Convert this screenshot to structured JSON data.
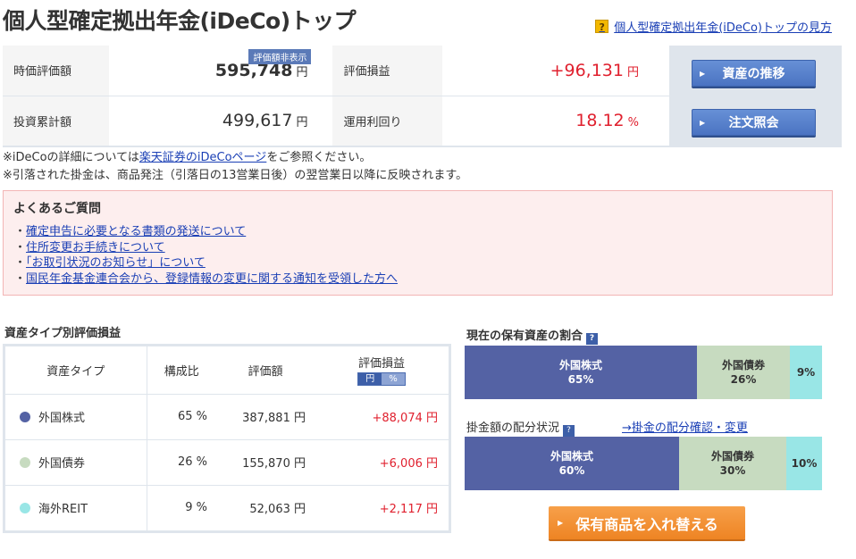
{
  "header": {
    "title": "個人型確定拠出年金(iDeCo)トップ",
    "guide_link": "個人型確定拠出年金(iDeCo)トップの見方",
    "guide_icon": "question-icon"
  },
  "summary": {
    "market_value_label": "時価評価額",
    "market_value": "595,748",
    "hide_badge": "評価額非表示",
    "profit_label": "評価損益",
    "profit": "+96,131",
    "invested_label": "投資累計額",
    "invested": "499,617",
    "yield_label": "運用利回り",
    "yield": "18.12",
    "yield_unit": "%",
    "yen": "円",
    "btn_history": "資産の推移",
    "btn_orders": "注文照会"
  },
  "notes": {
    "line1_pre": "※iDeCoの詳細については",
    "line1_link": "楽天証券のiDeCoページ",
    "line1_post": "をご参照ください。",
    "line2": "※引落された掛金は、商品発注（引落日の13営業日後）の翌営業日以降に反映されます。"
  },
  "faq": {
    "title": "よくあるご質問",
    "items": [
      "確定申告に必要となる書類の発送について",
      "住所変更お手続きについて",
      "「お取引状況のお知らせ」について",
      "国民年金基金連合会から、登録情報の変更に関する通知を受領した方へ"
    ]
  },
  "asset_table": {
    "title": "資産タイプ別評価損益",
    "headers": {
      "type": "資産タイプ",
      "ratio": "構成比",
      "value": "評価額",
      "pl": "評価損益",
      "toggle_yen": "円",
      "toggle_pct": "%"
    },
    "rows": [
      {
        "name": "外国株式",
        "ratio": "65 %",
        "value": "387,881 円",
        "pl": "+88,074 円",
        "color": "#5462a4"
      },
      {
        "name": "外国債券",
        "ratio": "26 %",
        "value": "155,870 円",
        "pl": "+6,006 円",
        "color": "#c7dbc0"
      },
      {
        "name": "海外REIT",
        "ratio": "9 %",
        "value": "52,063 円",
        "pl": "+2,117 円",
        "color": "#99e6e6"
      }
    ]
  },
  "holding_ratio": {
    "title": "現在の保有資産の割合",
    "segments": [
      {
        "name": "外国株式",
        "pct": "65%",
        "value": 65
      },
      {
        "name": "外国債券",
        "pct": "26%",
        "value": 26
      },
      {
        "name": "",
        "pct": "9%",
        "value": 9
      }
    ]
  },
  "contribution_ratio": {
    "title": "掛金額の配分状況",
    "link": "→掛金の配分確認・変更",
    "segments": [
      {
        "name": "外国株式",
        "pct": "60%",
        "value": 60
      },
      {
        "name": "外国債券",
        "pct": "30%",
        "value": 30
      },
      {
        "name": "",
        "pct": "10%",
        "value": 10
      }
    ]
  },
  "switch_button": "保有商品を入れ替える"
}
